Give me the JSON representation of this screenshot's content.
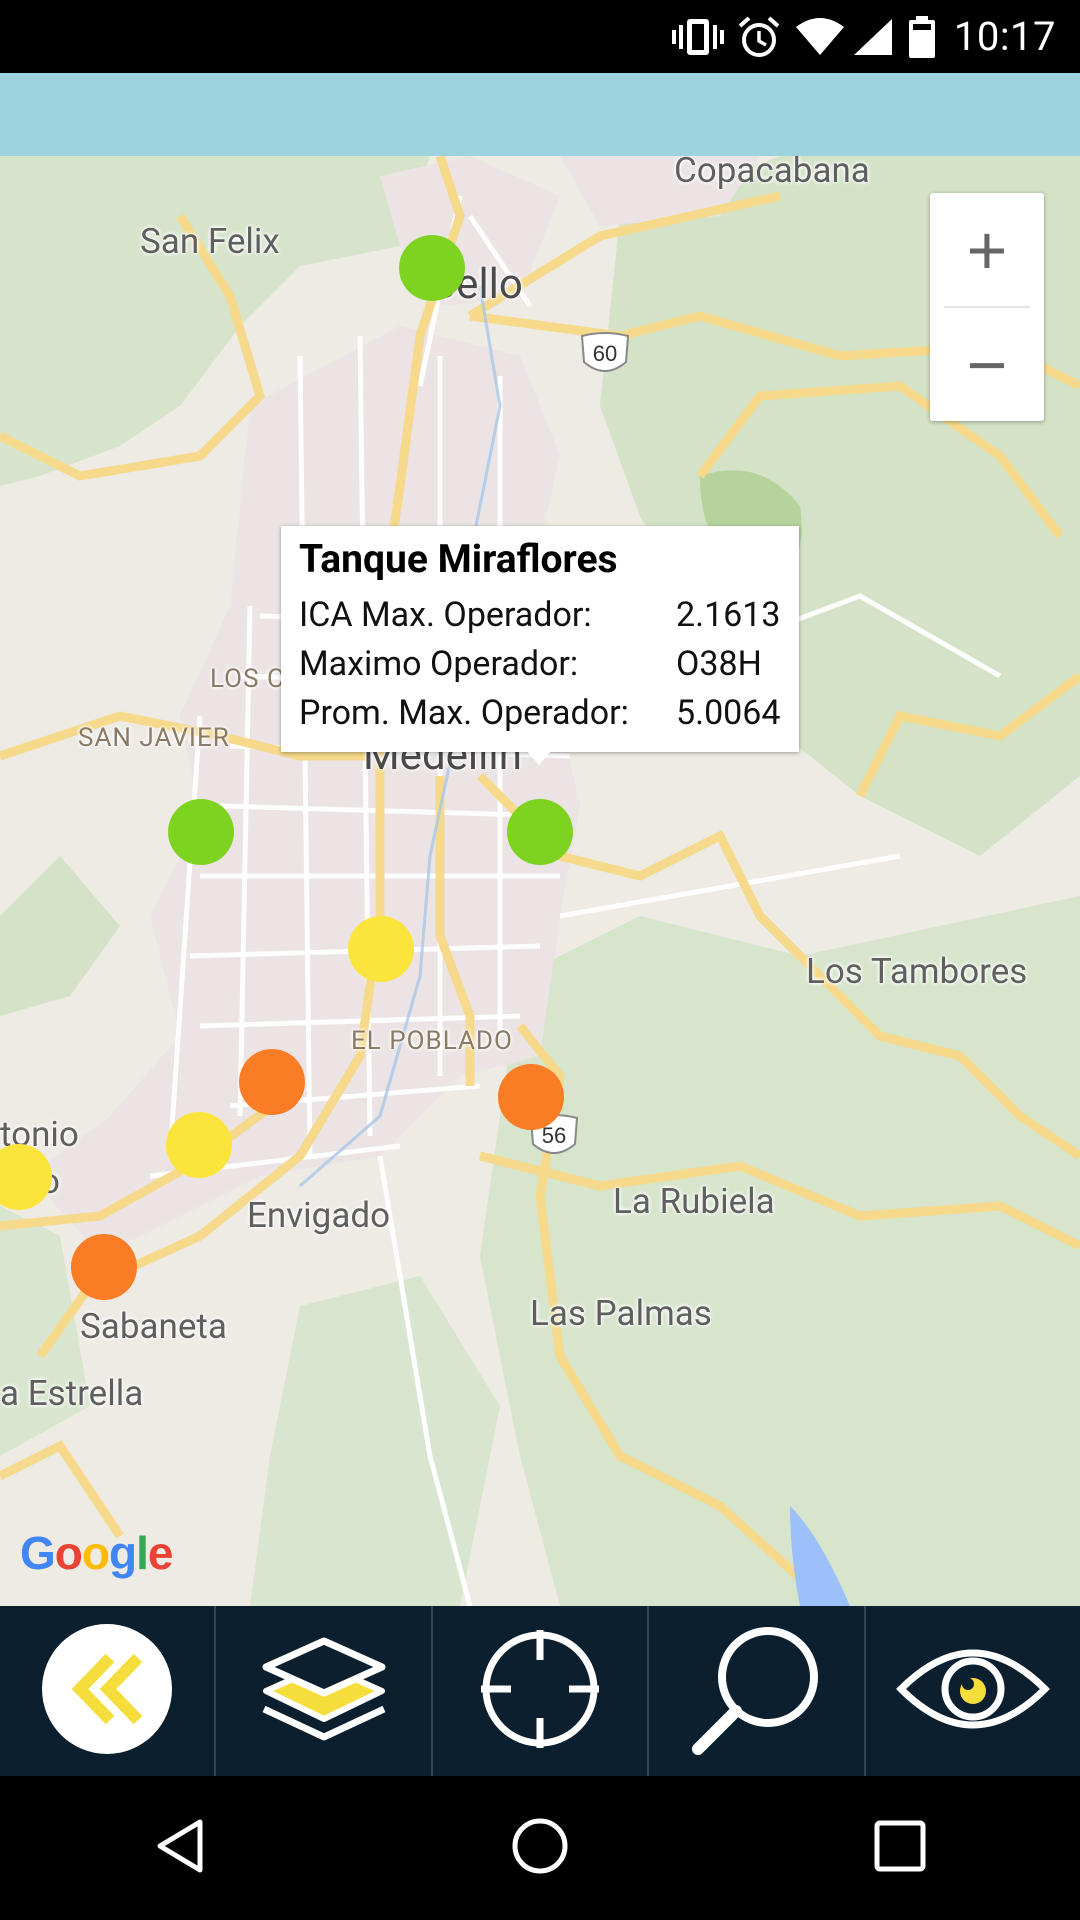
{
  "status_bar": {
    "time": "10:17",
    "icons": [
      "vibrate-icon",
      "alarm-icon",
      "wifi-icon",
      "signal-icon",
      "battery-icon"
    ]
  },
  "map": {
    "places": {
      "copacabana": "Copacabana",
      "san_felix": "San Felix",
      "bello": "Bello",
      "los_colores": "LOS C",
      "san_javier": "SAN JAVIER",
      "medellin": "Medellín",
      "los_tambores": "Los Tambores",
      "el_poblado": "EL POBLADO",
      "antonio": "tonio",
      "prado": "o",
      "envigado": "Envigado",
      "la_rubiela": "La Rubiela",
      "las_palmas": "Las Palmas",
      "sabaneta": "Sabaneta",
      "la_estrella": "a Estrella"
    },
    "route_shields": [
      "60",
      "56"
    ],
    "markers": [
      {
        "id": "bello",
        "level": "green",
        "color": "#7ed321"
      },
      {
        "id": "san-javier",
        "level": "green",
        "color": "#7ed321"
      },
      {
        "id": "tanque-miraflores",
        "level": "green",
        "color": "#7ed321"
      },
      {
        "id": "centro",
        "level": "yellow",
        "color": "#fbe53d"
      },
      {
        "id": "guayabal",
        "level": "orange",
        "color": "#fa7c24"
      },
      {
        "id": "el-poblado-east",
        "level": "orange",
        "color": "#fa7c24"
      },
      {
        "id": "itagui",
        "level": "yellow",
        "color": "#fbe53d"
      },
      {
        "id": "san-antonio-prado",
        "level": "yellow",
        "color": "#fbe53d"
      },
      {
        "id": "sabaneta",
        "level": "orange",
        "color": "#fa7c24"
      }
    ],
    "zoom_in": "+",
    "zoom_out": "−",
    "attribution": "Google"
  },
  "popup": {
    "title": "Tanque Miraflores",
    "rows": [
      {
        "label": "ICA Max. Operador:",
        "value": "2.1613"
      },
      {
        "label": "Maximo Operador:",
        "value": "O38H"
      },
      {
        "label": "Prom. Max. Operador:",
        "value": "5.0064"
      }
    ]
  },
  "toolbar": {
    "buttons": [
      "back-icon",
      "layers-icon",
      "locate-icon",
      "search-icon",
      "visibility-icon"
    ],
    "accent": "#f5dd3b",
    "background": "#0b1f2e"
  },
  "colors": {
    "banner": "#9dd3df",
    "marker_green": "#7ed321",
    "marker_yellow": "#fbe53d",
    "marker_orange": "#fa7c24"
  }
}
